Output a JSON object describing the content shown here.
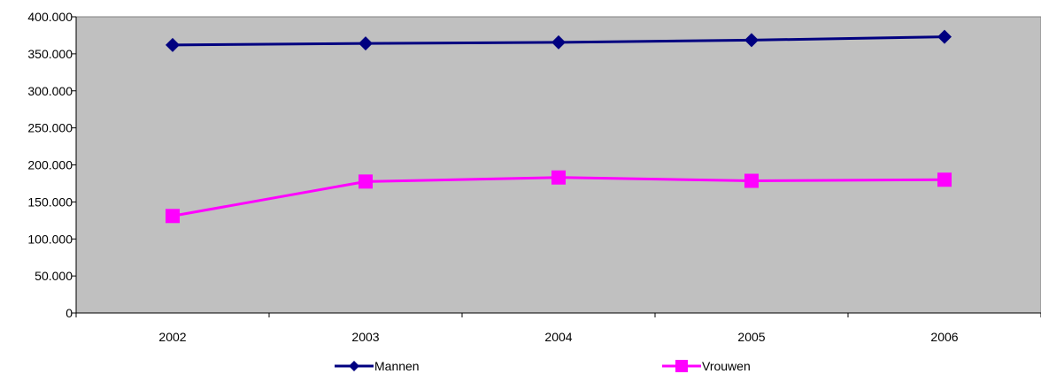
{
  "chart_data": {
    "type": "line",
    "categories": [
      "2002",
      "2003",
      "2004",
      "2005",
      "2006"
    ],
    "series": [
      {
        "name": "Mannen",
        "values": [
          362000,
          364000,
          365500,
          368500,
          373000
        ],
        "color": "#000080",
        "marker": "diamond"
      },
      {
        "name": "Vrouwen",
        "values": [
          131000,
          177500,
          183000,
          178500,
          180000
        ],
        "color": "#ff00ff",
        "marker": "square"
      }
    ],
    "yticks": [
      "0",
      "50.000",
      "100.000",
      "150.000",
      "200.000",
      "250.000",
      "300.000",
      "350.000",
      "400.000"
    ],
    "ylim": [
      0,
      400000
    ],
    "grid": false,
    "plot_background": "#c0c0c0",
    "legend_position": "bottom"
  }
}
